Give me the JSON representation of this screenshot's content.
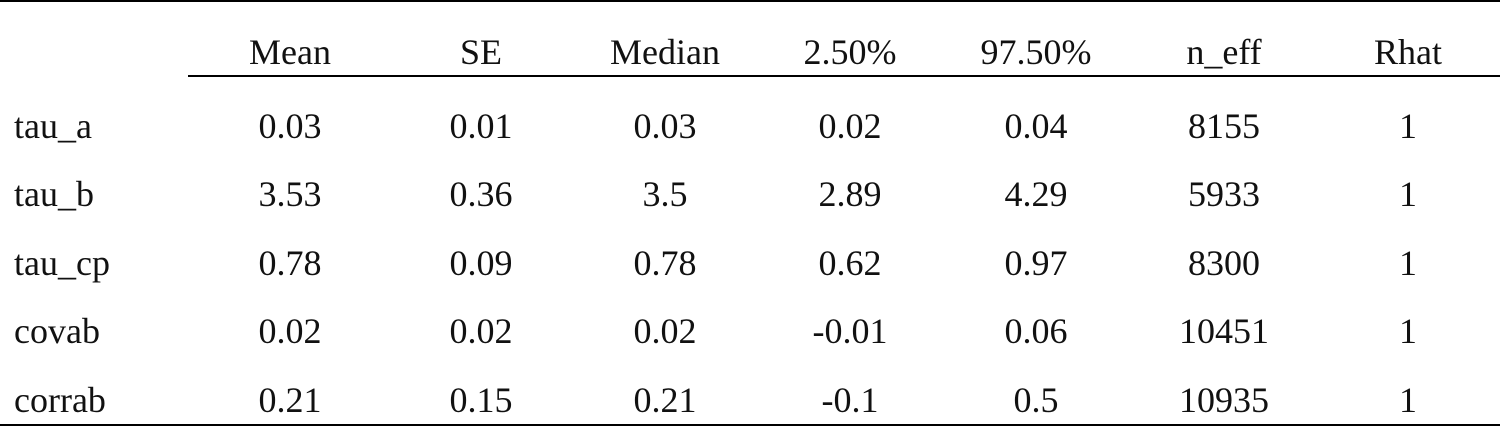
{
  "table": {
    "columns": [
      "Mean",
      "SE",
      "Median",
      "2.50%",
      "97.50%",
      "n_eff",
      "Rhat"
    ],
    "rows": [
      {
        "label": "tau_a",
        "values": [
          "0.03",
          "0.01",
          "0.03",
          "0.02",
          "0.04",
          "8155",
          "1"
        ]
      },
      {
        "label": "tau_b",
        "values": [
          "3.53",
          "0.36",
          "3.5",
          "2.89",
          "4.29",
          "5933",
          "1"
        ]
      },
      {
        "label": "tau_cp",
        "values": [
          "0.78",
          "0.09",
          "0.78",
          "0.62",
          "0.97",
          "8300",
          "1"
        ]
      },
      {
        "label": "covab",
        "values": [
          "0.02",
          "0.02",
          "0.02",
          "-0.01",
          "0.06",
          "10451",
          "1"
        ]
      },
      {
        "label": "corrab",
        "values": [
          "0.21",
          "0.15",
          "0.21",
          "-0.1",
          "0.5",
          "10935",
          "1"
        ]
      }
    ]
  }
}
